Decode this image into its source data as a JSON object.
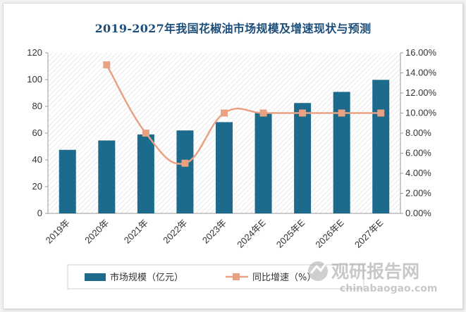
{
  "title": "2019-2027年我国花椒油市场规模及增速现状与预测",
  "colors": {
    "bar": "#1c6a8c",
    "line": "#e8a283",
    "marker": "#e8a283",
    "title": "#1d4e7a"
  },
  "chart_data": {
    "type": "bar+line",
    "categories": [
      "2019年",
      "2020年",
      "2021年",
      "2022年",
      "2023年",
      "2024年E",
      "2025年E",
      "2026年E",
      "2027年E"
    ],
    "series": [
      {
        "name": "市场规模（亿元）",
        "type": "bar",
        "axis": "left",
        "values": [
          47.5,
          54.5,
          59.0,
          62.0,
          68.2,
          75.0,
          82.5,
          90.8,
          99.8
        ]
      },
      {
        "name": "同比增速（%）",
        "type": "line",
        "axis": "right",
        "values": [
          null,
          14.8,
          8.0,
          5.0,
          10.0,
          10.0,
          10.0,
          10.0,
          10.0
        ]
      }
    ],
    "y_left": {
      "min": 0,
      "max": 120,
      "ticks": [
        "0",
        "20",
        "40",
        "60",
        "80",
        "100",
        "120"
      ]
    },
    "y_right": {
      "min": 0,
      "max": 16,
      "ticks": [
        "0.00%",
        "2.00%",
        "4.00%",
        "6.00%",
        "8.00%",
        "10.00%",
        "12.00%",
        "14.00%",
        "16.00%"
      ]
    },
    "grid": false,
    "legend_position": "bottom"
  },
  "watermark": {
    "cn": "观研报告网",
    "url": "chinabaogao.com"
  }
}
